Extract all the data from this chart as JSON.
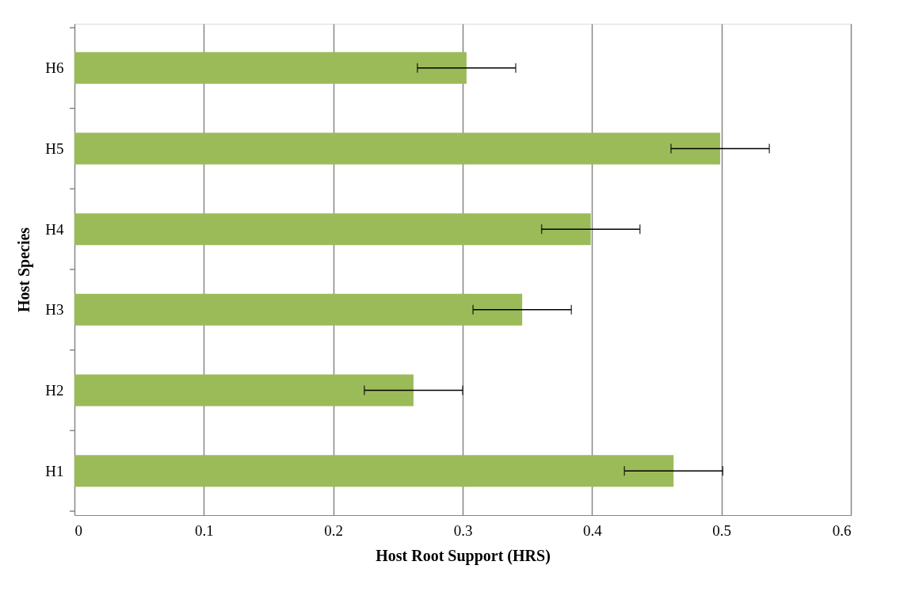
{
  "chart_data": {
    "type": "bar",
    "orientation": "horizontal",
    "xlabel": "Host Root Support (HRS)",
    "ylabel": "Host Species",
    "categories": [
      "H6",
      "H5",
      "H4",
      "H3",
      "H2",
      "H1"
    ],
    "values": [
      0.303,
      0.499,
      0.399,
      0.346,
      0.262,
      0.463
    ],
    "errors": [
      0.038,
      0.038,
      0.038,
      0.038,
      0.038,
      0.038
    ],
    "color": "#9bbb59",
    "xlim": [
      0,
      0.6
    ],
    "xticks": [
      0,
      0.1,
      0.2,
      0.3,
      0.4,
      0.5,
      0.6
    ],
    "grid": "x"
  }
}
